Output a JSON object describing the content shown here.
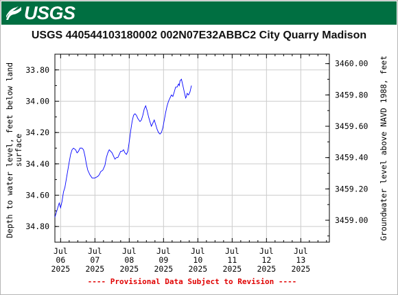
{
  "header": {
    "logo_text": "USGS",
    "title": "USGS 440544103180002 002N07E32ABBC2 City Quarry Madison"
  },
  "footnote": "---- Provisional Data Subject to Revision ----",
  "colors": {
    "banner": "#006f41",
    "series": "#0000ff",
    "footnote": "#e00000",
    "grid": "#cccccc"
  },
  "chart_data": {
    "type": "line",
    "title": "USGS 440544103180002 002N07E32ABBC2 City Quarry Madison",
    "ylabel": "Depth to water level, feet below land surface",
    "y2label": "Groundwater level above NAVD 1988, feet",
    "ylim": [
      34.9,
      33.7
    ],
    "y_inverted": true,
    "y_ticks": [
      "33.80",
      "34.00",
      "34.20",
      "34.40",
      "34.60",
      "34.80"
    ],
    "y2lim": [
      3458.86,
      3460.06
    ],
    "y2_ticks": [
      "3460.00",
      "3459.80",
      "3459.60",
      "3459.40",
      "3459.20",
      "3459.00"
    ],
    "xlim": [
      "2025-07-05 20:00",
      "2025-07-13 20:00"
    ],
    "x_ticks": [
      {
        "month": "Jul",
        "day": "06",
        "year": "2025"
      },
      {
        "month": "Jul",
        "day": "07",
        "year": "2025"
      },
      {
        "month": "Jul",
        "day": "08",
        "year": "2025"
      },
      {
        "month": "Jul",
        "day": "09",
        "year": "2025"
      },
      {
        "month": "Jul",
        "day": "10",
        "year": "2025"
      },
      {
        "month": "Jul",
        "day": "11",
        "year": "2025"
      },
      {
        "month": "Jul",
        "day": "12",
        "year": "2025"
      },
      {
        "month": "Jul",
        "day": "13",
        "year": "2025"
      }
    ],
    "grid": true,
    "series": [
      {
        "points": [
          [
            "2025-07-05 20:00",
            34.74
          ],
          [
            "2025-07-05 22:00",
            34.68
          ],
          [
            "2025-07-05 23:00",
            34.65
          ],
          [
            "2025-07-06 00:00",
            34.68
          ],
          [
            "2025-07-06 01:00",
            34.64
          ],
          [
            "2025-07-06 02:00",
            34.58
          ],
          [
            "2025-07-06 03:00",
            34.55
          ],
          [
            "2025-07-06 04:30",
            34.47
          ],
          [
            "2025-07-06 06:00",
            34.39
          ],
          [
            "2025-07-06 07:00",
            34.34
          ],
          [
            "2025-07-06 08:00",
            34.31
          ],
          [
            "2025-07-06 09:00",
            34.3
          ],
          [
            "2025-07-06 10:30",
            34.31
          ],
          [
            "2025-07-06 11:30",
            34.33
          ],
          [
            "2025-07-06 12:30",
            34.32
          ],
          [
            "2025-07-06 13:30",
            34.3
          ],
          [
            "2025-07-06 15:00",
            34.3
          ],
          [
            "2025-07-06 16:00",
            34.31
          ],
          [
            "2025-07-06 17:00",
            34.35
          ],
          [
            "2025-07-06 18:00",
            34.4
          ],
          [
            "2025-07-06 19:00",
            34.44
          ],
          [
            "2025-07-06 20:30",
            34.47
          ],
          [
            "2025-07-06 22:00",
            34.49
          ],
          [
            "2025-07-07 00:00",
            34.49
          ],
          [
            "2025-07-07 02:00",
            34.48
          ],
          [
            "2025-07-07 03:00",
            34.47
          ],
          [
            "2025-07-07 04:00",
            34.45
          ],
          [
            "2025-07-07 05:30",
            34.44
          ],
          [
            "2025-07-07 07:00",
            34.41
          ],
          [
            "2025-07-07 08:00",
            34.36
          ],
          [
            "2025-07-07 09:00",
            34.33
          ],
          [
            "2025-07-07 10:00",
            34.31
          ],
          [
            "2025-07-07 11:00",
            34.32
          ],
          [
            "2025-07-07 12:00",
            34.33
          ],
          [
            "2025-07-07 13:00",
            34.35
          ],
          [
            "2025-07-07 14:00",
            34.37
          ],
          [
            "2025-07-07 15:00",
            34.36
          ],
          [
            "2025-07-07 16:00",
            34.36
          ],
          [
            "2025-07-07 17:00",
            34.34
          ],
          [
            "2025-07-07 18:00",
            34.32
          ],
          [
            "2025-07-07 19:00",
            34.32
          ],
          [
            "2025-07-07 20:00",
            34.31
          ],
          [
            "2025-07-07 21:00",
            34.33
          ],
          [
            "2025-07-07 22:00",
            34.34
          ],
          [
            "2025-07-07 23:00",
            34.32
          ],
          [
            "2025-07-08 00:00",
            34.26
          ],
          [
            "2025-07-08 01:00",
            34.19
          ],
          [
            "2025-07-08 02:00",
            34.13
          ],
          [
            "2025-07-08 03:00",
            34.09
          ],
          [
            "2025-07-08 04:00",
            34.08
          ],
          [
            "2025-07-08 05:00",
            34.09
          ],
          [
            "2025-07-08 06:00",
            34.11
          ],
          [
            "2025-07-08 07:30",
            34.13
          ],
          [
            "2025-07-08 08:30",
            34.12
          ],
          [
            "2025-07-08 09:30",
            34.09
          ],
          [
            "2025-07-08 10:30",
            34.05
          ],
          [
            "2025-07-08 11:30",
            34.03
          ],
          [
            "2025-07-08 12:30",
            34.06
          ],
          [
            "2025-07-08 13:30",
            34.1
          ],
          [
            "2025-07-08 14:30",
            34.13
          ],
          [
            "2025-07-08 15:30",
            34.16
          ],
          [
            "2025-07-08 16:30",
            34.14
          ],
          [
            "2025-07-08 17:30",
            34.12
          ],
          [
            "2025-07-08 18:30",
            34.15
          ],
          [
            "2025-07-08 19:30",
            34.18
          ],
          [
            "2025-07-08 20:30",
            34.2
          ],
          [
            "2025-07-08 21:30",
            34.21
          ],
          [
            "2025-07-08 22:30",
            34.2
          ],
          [
            "2025-07-08 23:30",
            34.17
          ],
          [
            "2025-07-09 00:30",
            34.12
          ],
          [
            "2025-07-09 01:30",
            34.07
          ],
          [
            "2025-07-09 02:30",
            34.03
          ],
          [
            "2025-07-09 03:30",
            34.0
          ],
          [
            "2025-07-09 04:30",
            33.98
          ],
          [
            "2025-07-09 05:30",
            33.96
          ],
          [
            "2025-07-09 06:30",
            33.97
          ],
          [
            "2025-07-09 07:30",
            33.94
          ],
          [
            "2025-07-09 08:30",
            33.91
          ],
          [
            "2025-07-09 09:30",
            33.91
          ],
          [
            "2025-07-09 10:30",
            33.89
          ],
          [
            "2025-07-09 11:00",
            33.9
          ],
          [
            "2025-07-09 11:30",
            33.87
          ],
          [
            "2025-07-09 12:30",
            33.86
          ],
          [
            "2025-07-09 13:30",
            33.9
          ],
          [
            "2025-07-09 14:30",
            33.94
          ],
          [
            "2025-07-09 15:30",
            33.98
          ],
          [
            "2025-07-09 16:00",
            33.97
          ],
          [
            "2025-07-09 16:30",
            33.95
          ],
          [
            "2025-07-09 17:30",
            33.96
          ],
          [
            "2025-07-09 18:30",
            33.94
          ],
          [
            "2025-07-09 19:30",
            33.9
          ]
        ]
      }
    ]
  }
}
